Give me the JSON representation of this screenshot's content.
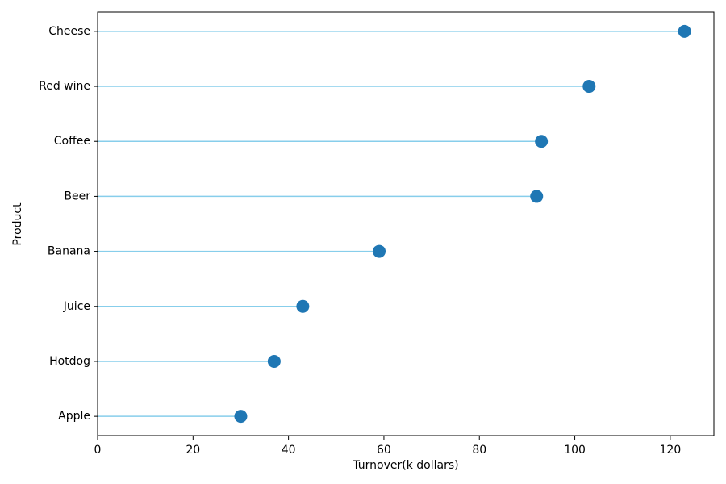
{
  "chart_data": {
    "type": "lollipop",
    "orientation": "horizontal",
    "x_label": "Turnover(k dollars)",
    "y_label": "Product",
    "categories": [
      "Apple",
      "Hotdog",
      "Juice",
      "Banana",
      "Beer",
      "Coffee",
      "Red wine",
      "Cheese"
    ],
    "values": [
      30,
      37,
      43,
      59,
      92,
      93,
      103,
      123
    ],
    "line_color": "#87ceeb",
    "color": "#1f77b4",
    "xlim": [
      0,
      129.15
    ],
    "xticks": [
      0,
      20,
      40,
      60,
      80,
      100,
      120
    ],
    "grid": false
  }
}
